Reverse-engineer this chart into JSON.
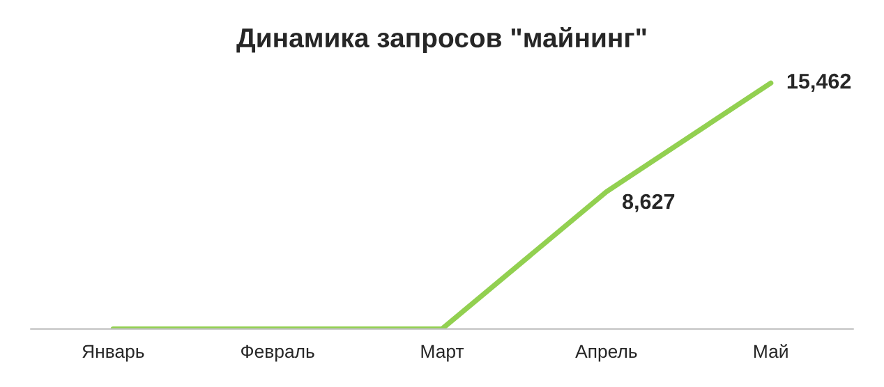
{
  "chart_data": {
    "type": "line",
    "title": "Динамика запросов \"майнинг\"",
    "categories": [
      "Январь",
      "Февраль",
      "Март",
      "Апрель",
      "Май"
    ],
    "series": [
      {
        "color": "#92d050",
        "values": [
          0,
          0,
          0,
          8627,
          15462
        ],
        "value_labels": [
          null,
          null,
          null,
          "8,627",
          "15,462"
        ]
      }
    ],
    "grid": false,
    "legend": false,
    "marker": "none",
    "line_style": "solid"
  }
}
